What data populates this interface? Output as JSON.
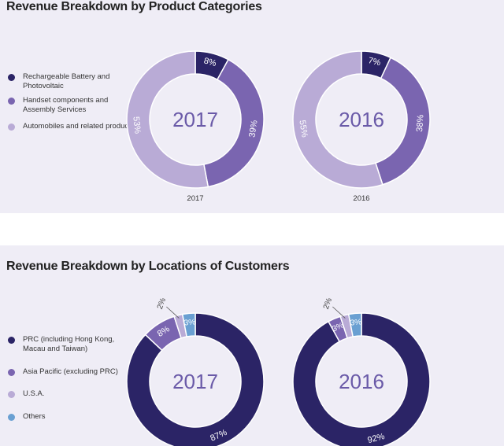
{
  "colors": {
    "panel_bg": "#efedf6",
    "dark": "#2b2466",
    "mid": "#7a65b0",
    "light": "#b9abd6",
    "blue": "#6aa0d2"
  },
  "top": {
    "title": "Revenue Breakdown by Product Categories",
    "legend": [
      {
        "label": "Rechargeable Battery and Photovoltaic",
        "color": "#2b2466"
      },
      {
        "label": "Handset components and Assembly Services",
        "color": "#7a65b0"
      },
      {
        "label": "Automobiles and related products",
        "color": "#b9abd6"
      }
    ]
  },
  "bottom": {
    "title": "Revenue Breakdown by Locations of Customers",
    "legend": [
      {
        "label": "PRC (including Hong Kong, Macau and Taiwan)",
        "color": "#2b2466"
      },
      {
        "label": "Asia Pacific (excluding PRC)",
        "color": "#7a65b0"
      },
      {
        "label": "U.S.A.",
        "color": "#b9abd6"
      },
      {
        "label": "Others",
        "color": "#6aa0d2"
      }
    ]
  },
  "chart_data": [
    {
      "type": "pie",
      "title": "Revenue Breakdown by Product Categories",
      "center_label": "2017",
      "caption": "2017",
      "slices": [
        {
          "name": "Rechargeable Battery and Photovoltaic",
          "value": 8,
          "label": "8%",
          "color": "#2b2466"
        },
        {
          "name": "Handset components and Assembly Services",
          "value": 39,
          "label": "39%",
          "color": "#7a65b0"
        },
        {
          "name": "Automobiles and related products",
          "value": 53,
          "label": "53%",
          "color": "#b9abd6"
        }
      ]
    },
    {
      "type": "pie",
      "title": "Revenue Breakdown by Product Categories",
      "center_label": "2016",
      "caption": "2016",
      "slices": [
        {
          "name": "Rechargeable Battery and Photovoltaic",
          "value": 7,
          "label": "7%",
          "color": "#2b2466"
        },
        {
          "name": "Handset components and Assembly Services",
          "value": 38,
          "label": "38%",
          "color": "#7a65b0"
        },
        {
          "name": "Automobiles and related products",
          "value": 55,
          "label": "55%",
          "color": "#b9abd6"
        }
      ]
    },
    {
      "type": "pie",
      "title": "Revenue Breakdown by Locations of Customers",
      "center_label": "2017",
      "slices": [
        {
          "name": "PRC (including Hong Kong, Macau and Taiwan)",
          "value": 87,
          "label": "87%",
          "color": "#2b2466"
        },
        {
          "name": "Asia Pacific (excluding PRC)",
          "value": 8,
          "label": "8%",
          "color": "#7a65b0"
        },
        {
          "name": "U.S.A.",
          "value": 2,
          "label": "2%",
          "color": "#b9abd6"
        },
        {
          "name": "Others",
          "value": 3,
          "label": "3%",
          "color": "#6aa0d2"
        }
      ]
    },
    {
      "type": "pie",
      "title": "Revenue Breakdown by Locations of Customers",
      "center_label": "2016",
      "slices": [
        {
          "name": "PRC (including Hong Kong, Macau and Taiwan)",
          "value": 92,
          "label": "92%",
          "color": "#2b2466"
        },
        {
          "name": "Asia Pacific (excluding PRC)",
          "value": 3,
          "label": "3%",
          "color": "#7a65b0"
        },
        {
          "name": "U.S.A.",
          "value": 2,
          "label": "2%",
          "color": "#b9abd6"
        },
        {
          "name": "Others",
          "value": 3,
          "label": "3%",
          "color": "#6aa0d2"
        }
      ]
    }
  ]
}
